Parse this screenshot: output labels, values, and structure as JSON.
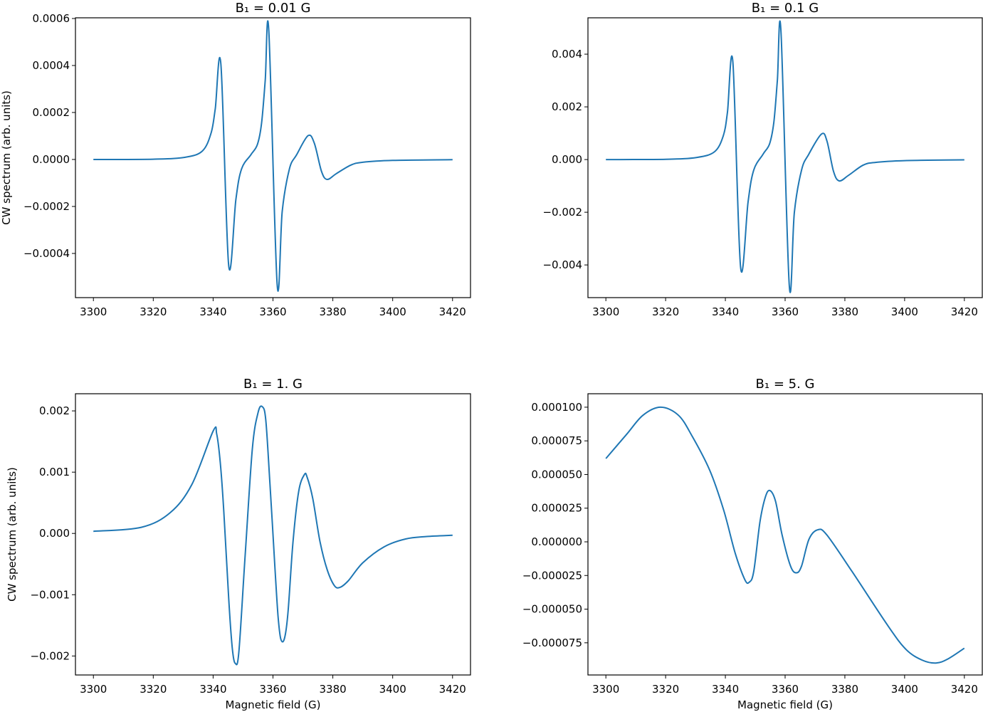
{
  "line_color": "#1f77b4",
  "chart_data": [
    {
      "type": "line",
      "title": "B₁ = 0.01 G",
      "xlabel": "",
      "ylabel": "CW spectrum (arb. units)",
      "xlim": [
        3294,
        3426
      ],
      "ylim": [
        -0.000588,
        0.000603
      ],
      "grid": false,
      "xticks": [
        {
          "v": 3300,
          "label": "3300"
        },
        {
          "v": 3320,
          "label": "3320"
        },
        {
          "v": 3340,
          "label": "3340"
        },
        {
          "v": 3360,
          "label": "3360"
        },
        {
          "v": 3380,
          "label": "3380"
        },
        {
          "v": 3400,
          "label": "3400"
        },
        {
          "v": 3420,
          "label": "3420"
        }
      ],
      "yticks": [
        {
          "v": 0.0006,
          "label": "0.0006"
        },
        {
          "v": 0.0004,
          "label": "0.0004"
        },
        {
          "v": 0.0002,
          "label": "0.0002"
        },
        {
          "v": 0,
          "label": "0.0000"
        },
        {
          "v": -0.0002,
          "label": "−0.0002"
        },
        {
          "v": -0.0004,
          "label": "−0.0004"
        }
      ],
      "x": [
        3300,
        3320,
        3330.5,
        3336.4,
        3339.3,
        3340.7,
        3342.6,
        3345.2,
        3347.6,
        3349.5,
        3352.6,
        3354.8,
        3356.2,
        3357.4,
        3358.6,
        3361.4,
        3363.1,
        3365.5,
        3367.9,
        3371.7,
        3373.8,
        3376.2,
        3378.1,
        3381.2,
        3386,
        3390,
        3400,
        3420
      ],
      "y": [
        0,
        1e-06,
        9e-06,
        3.6e-05,
        0.000112,
        0.000215,
        0.000406,
        -0.000452,
        -0.00017,
        -4e-05,
        2e-05,
        6.4e-05,
        0.000155,
        0.000336,
        0.00055,
        -0.000533,
        -0.00022,
        -4e-05,
        2e-05,
        0.000101,
        7e-05,
        -5e-05,
        -8.5e-05,
        -6e-05,
        -2.4e-05,
        -1.2e-05,
        -4e-06,
        -1e-06
      ]
    },
    {
      "type": "line",
      "title": "B₁ = 0.1 G",
      "xlabel": "",
      "ylabel": "",
      "xlim": [
        3294,
        3426
      ],
      "ylim": [
        -0.00524,
        0.00538
      ],
      "grid": false,
      "xticks": [
        {
          "v": 3300,
          "label": "3300"
        },
        {
          "v": 3320,
          "label": "3320"
        },
        {
          "v": 3340,
          "label": "3340"
        },
        {
          "v": 3360,
          "label": "3360"
        },
        {
          "v": 3380,
          "label": "3380"
        },
        {
          "v": 3400,
          "label": "3400"
        },
        {
          "v": 3420,
          "label": "3420"
        }
      ],
      "yticks": [
        {
          "v": 0.004,
          "label": "0.004"
        },
        {
          "v": 0.002,
          "label": "0.002"
        },
        {
          "v": 0,
          "label": "0.000"
        },
        {
          "v": -0.002,
          "label": "−0.002"
        },
        {
          "v": -0.004,
          "label": "−0.004"
        }
      ],
      "x": [
        3300,
        3320,
        3330.5,
        3336.4,
        3339.3,
        3340.7,
        3342.5,
        3345.1,
        3347.6,
        3349.5,
        3352.6,
        3354.8,
        3356.2,
        3357.4,
        3358.6,
        3361.4,
        3363.1,
        3365.5,
        3367.9,
        3372.2,
        3374,
        3376.2,
        3378.1,
        3381.2,
        3386,
        3390,
        3400,
        3420
      ],
      "y": [
        0,
        1e-05,
        8e-05,
        0.0003,
        0.0009,
        0.0018,
        0.0037,
        -0.0041,
        -0.0016,
        -0.0004,
        0.0002,
        0.0006,
        0.0014,
        0.003,
        0.0049,
        -0.0048,
        -0.002,
        -0.0004,
        0.0002,
        0.00097,
        0.0007,
        -0.00045,
        -0.00081,
        -0.0006,
        -0.00022,
        -0.00011,
        -4e-05,
        -1e-05
      ]
    },
    {
      "type": "line",
      "title": "B₁ = 1. G",
      "xlabel": "Magnetic field (G)",
      "ylabel": "CW spectrum (arb. units)",
      "xlim": [
        3294,
        3426
      ],
      "ylim": [
        -0.00231,
        0.00228
      ],
      "grid": false,
      "xticks": [
        {
          "v": 3300,
          "label": "3300"
        },
        {
          "v": 3320,
          "label": "3320"
        },
        {
          "v": 3340,
          "label": "3340"
        },
        {
          "v": 3360,
          "label": "3360"
        },
        {
          "v": 3380,
          "label": "3380"
        },
        {
          "v": 3400,
          "label": "3400"
        },
        {
          "v": 3420,
          "label": "3420"
        }
      ],
      "yticks": [
        {
          "v": 0.002,
          "label": "0.002"
        },
        {
          "v": 0.001,
          "label": "0.001"
        },
        {
          "v": 0,
          "label": "0.000"
        },
        {
          "v": -0.001,
          "label": "−0.001"
        },
        {
          "v": -0.002,
          "label": "−0.002"
        }
      ],
      "x": [
        3300,
        3316,
        3325.7,
        3332.9,
        3340,
        3341.2,
        3342.4,
        3343.6,
        3345.2,
        3346.4,
        3347.4,
        3348.6,
        3350.7,
        3353.1,
        3355,
        3356.4,
        3357.6,
        3359,
        3360.7,
        3361.7,
        3362.6,
        3363.8,
        3365,
        3366.7,
        3368.6,
        3370.5,
        3371.4,
        3373.3,
        3375.7,
        3378.1,
        3380.5,
        3382.4,
        3385.2,
        3390,
        3397.1,
        3404.3,
        3411.4,
        3420
      ],
      "y": [
        3.5e-05,
        0.0001,
        0.00034,
        0.0008,
        0.00167,
        0.00162,
        0.00115,
        0.00034,
        -0.00106,
        -0.00187,
        -0.00212,
        -0.00193,
        -0.00036,
        0.00138,
        0.00197,
        0.00207,
        0.00185,
        0.0008,
        -0.00059,
        -0.00135,
        -0.00172,
        -0.00172,
        -0.0013,
        -0.00013,
        0.00069,
        0.00096,
        0.00092,
        0.00057,
        -0.00013,
        -0.00059,
        -0.00085,
        -0.00088,
        -0.00077,
        -0.00048,
        -0.00022,
        -9e-05,
        -5e-05,
        -3e-05
      ]
    },
    {
      "type": "line",
      "title": "B₁ = 5. G",
      "xlabel": "Magnetic field (G)",
      "ylabel": "",
      "xlim": [
        3294,
        3426
      ],
      "ylim": [
        -9.89e-05,
        0.00011
      ],
      "grid": false,
      "xticks": [
        {
          "v": 3300,
          "label": "3300"
        },
        {
          "v": 3320,
          "label": "3320"
        },
        {
          "v": 3340,
          "label": "3340"
        },
        {
          "v": 3360,
          "label": "3360"
        },
        {
          "v": 3380,
          "label": "3380"
        },
        {
          "v": 3400,
          "label": "3400"
        },
        {
          "v": 3420,
          "label": "3420"
        }
      ],
      "yticks": [
        {
          "v": 0.0001,
          "label": "0.000100"
        },
        {
          "v": 7.5e-05,
          "label": "0.000075"
        },
        {
          "v": 5e-05,
          "label": "0.000050"
        },
        {
          "v": 2.5e-05,
          "label": "0.000025"
        },
        {
          "v": 0,
          "label": "0.000000"
        },
        {
          "v": -2.5e-05,
          "label": "−0.000025"
        },
        {
          "v": -5e-05,
          "label": "−0.000050"
        },
        {
          "v": -7.5e-05,
          "label": "−0.000075"
        }
      ],
      "x": [
        3300,
        3307,
        3312.4,
        3318.3,
        3324.3,
        3329,
        3334.8,
        3339.5,
        3343.3,
        3346.5,
        3348,
        3349.5,
        3351.6,
        3353.5,
        3355,
        3356.8,
        3359,
        3361.8,
        3363.8,
        3365.5,
        3368,
        3371,
        3374,
        3382.4,
        3394.3,
        3400.5,
        3406,
        3410.5,
        3414.5,
        3420
      ],
      "y": [
        6.19e-05,
        8e-05,
        9.4e-05,
        0.0001,
        9.4e-05,
        7.8e-05,
        5.3e-05,
        2.3e-05,
        -8.5e-06,
        -2.8e-05,
        -3e-05,
        -2.2e-05,
        1.5e-05,
        3.4e-05,
        3.8e-05,
        3e-05,
        5e-06,
        -1.8e-05,
        -2.3e-05,
        -1.8e-05,
        2e-06,
        9e-06,
        5e-06,
        -2.2e-05,
        -6.2e-05,
        -8e-05,
        -8.8e-05,
        -9e-05,
        -8.7e-05,
        -7.9e-05
      ]
    }
  ]
}
